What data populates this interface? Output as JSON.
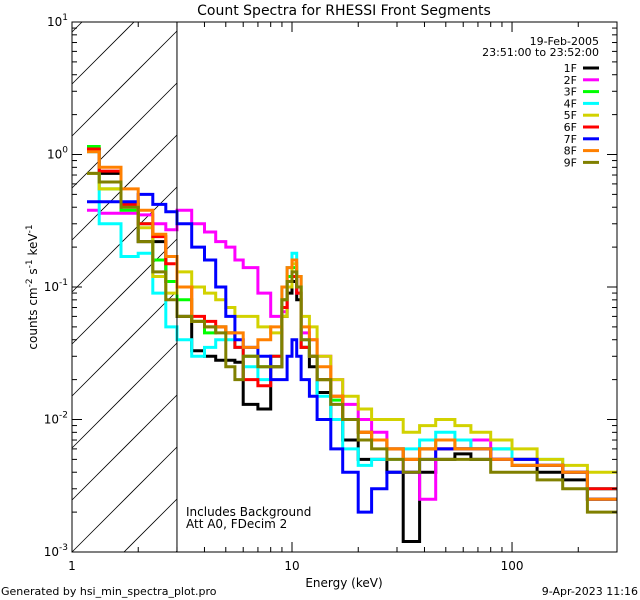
{
  "chart_data": {
    "type": "line",
    "title": "Count Spectra for RHESSI Front Segments",
    "xlabel": "Energy (keV)",
    "ylabel": {
      "base": "counts cm",
      "exp1": "-2",
      "mid1": " s",
      "exp2": "-1",
      "mid2": " keV",
      "exp3": "-1"
    },
    "xscale": "log",
    "yscale": "log",
    "xlim": [
      1,
      300
    ],
    "ylim": [
      0.001,
      10
    ],
    "x_ticks": [
      {
        "value": 1,
        "label": "1"
      },
      {
        "value": 10,
        "label": "10"
      },
      {
        "value": 100,
        "label": "100"
      }
    ],
    "y_ticks": [
      {
        "value": 0.001,
        "base": "10",
        "exp": "-3"
      },
      {
        "value": 0.01,
        "base": "10",
        "exp": "-2"
      },
      {
        "value": 0.1,
        "base": "10",
        "exp": "-1"
      },
      {
        "value": 1,
        "base": "10",
        "exp": "0"
      },
      {
        "value": 10,
        "base": "10",
        "exp": "1"
      }
    ],
    "excluded_region_keV": [
      1,
      3
    ],
    "date": "19-Feb-2005",
    "time_range": "23:51:00 to 23:52:00",
    "annotations": [
      "Includes Background",
      "Att A0, FDecim 2"
    ],
    "legend_position": "top-right",
    "energy_edges": [
      1.17,
      1.33,
      1.67,
      2.0,
      2.33,
      2.67,
      3.0,
      3.5,
      4.0,
      4.5,
      5.0,
      5.5,
      6.0,
      7.0,
      8.0,
      9.0,
      9.5,
      10,
      10.5,
      11,
      12,
      13,
      15,
      17,
      20,
      23,
      27,
      32,
      38,
      45,
      55,
      65,
      80,
      100,
      130,
      170,
      220,
      300
    ],
    "series": [
      {
        "name": "1F",
        "color": "#000000",
        "values": [
          1.1,
          0.72,
          0.42,
          0.22,
          0.22,
          0.11,
          0.06,
          0.033,
          0.03,
          0.028,
          0.028,
          0.027,
          0.013,
          0.012,
          0.025,
          0.06,
          0.09,
          0.11,
          0.08,
          0.035,
          0.025,
          0.016,
          0.01,
          0.007,
          0.005,
          0.005,
          0.004,
          0.0012,
          0.004,
          0.005,
          0.0055,
          0.005,
          0.005,
          0.0045,
          0.004,
          0.0035,
          0.0025
        ]
      },
      {
        "name": "2F",
        "color": "#ff00ff",
        "values": [
          0.38,
          0.36,
          0.36,
          0.35,
          0.3,
          0.27,
          0.38,
          0.3,
          0.26,
          0.22,
          0.2,
          0.16,
          0.14,
          0.09,
          0.06,
          0.065,
          0.1,
          0.12,
          0.09,
          0.045,
          0.04,
          0.03,
          0.02,
          0.013,
          0.01,
          0.008,
          0.006,
          0.004,
          0.0025,
          0.006,
          0.006,
          0.007,
          0.005,
          0.005,
          0.0045,
          0.004,
          0.003
        ]
      },
      {
        "name": "3F",
        "color": "#00ff00",
        "values": [
          1.15,
          0.55,
          0.38,
          0.3,
          0.16,
          0.11,
          0.08,
          0.055,
          0.045,
          0.05,
          0.045,
          0.035,
          0.03,
          0.025,
          0.03,
          0.08,
          0.12,
          0.14,
          0.1,
          0.035,
          0.03,
          0.02,
          0.014,
          0.01,
          0.008,
          0.007,
          0.006,
          0.005,
          0.006,
          0.007,
          0.006,
          0.006,
          0.006,
          0.005,
          0.0045,
          0.004,
          0.003
        ]
      },
      {
        "name": "4F",
        "color": "#00ffff",
        "values": [
          1.05,
          0.3,
          0.17,
          0.18,
          0.09,
          0.05,
          0.04,
          0.03,
          0.035,
          0.04,
          0.04,
          0.035,
          0.025,
          0.02,
          0.03,
          0.1,
          0.14,
          0.18,
          0.12,
          0.04,
          0.03,
          0.015,
          0.01,
          0.006,
          0.0045,
          0.005,
          0.005,
          0.006,
          0.007,
          0.008,
          0.007,
          0.006,
          0.006,
          0.005,
          0.005,
          0.004,
          0.003
        ]
      },
      {
        "name": "5F",
        "color": "#d2d200",
        "values": [
          0.72,
          0.55,
          0.42,
          0.28,
          0.12,
          0.09,
          0.13,
          0.1,
          0.09,
          0.08,
          0.07,
          0.06,
          0.06,
          0.05,
          0.045,
          0.06,
          0.1,
          0.15,
          0.12,
          0.06,
          0.05,
          0.03,
          0.02,
          0.015,
          0.012,
          0.01,
          0.01,
          0.008,
          0.009,
          0.01,
          0.009,
          0.008,
          0.007,
          0.006,
          0.005,
          0.0045,
          0.004
        ]
      },
      {
        "name": "6F",
        "color": "#ff0000",
        "values": [
          1.1,
          0.75,
          0.42,
          0.3,
          0.24,
          0.15,
          0.1,
          0.06,
          0.055,
          0.05,
          0.045,
          0.035,
          0.02,
          0.018,
          0.03,
          0.07,
          0.11,
          0.12,
          0.09,
          0.035,
          0.03,
          0.02,
          0.015,
          0.01,
          0.008,
          0.007,
          0.006,
          0.005,
          0.006,
          0.006,
          0.006,
          0.006,
          0.005,
          0.005,
          0.0045,
          0.004,
          0.003
        ]
      },
      {
        "name": "7F",
        "color": "#0000ff",
        "values": [
          0.44,
          0.44,
          0.44,
          0.5,
          0.42,
          0.37,
          0.3,
          0.2,
          0.16,
          0.1,
          0.06,
          0.04,
          0.035,
          0.03,
          0.02,
          0.02,
          0.03,
          0.04,
          0.03,
          0.02,
          0.015,
          0.01,
          0.006,
          0.004,
          0.002,
          0.003,
          0.004,
          0.004,
          0.005,
          0.006,
          0.006,
          0.006,
          0.005,
          0.005,
          0.0045,
          0.004,
          0.0025
        ]
      },
      {
        "name": "8F",
        "color": "#ff8000",
        "values": [
          1.05,
          0.8,
          0.55,
          0.38,
          0.25,
          0.17,
          0.1,
          0.055,
          0.05,
          0.05,
          0.045,
          0.045,
          0.035,
          0.04,
          0.05,
          0.1,
          0.14,
          0.16,
          0.12,
          0.05,
          0.04,
          0.025,
          0.015,
          0.01,
          0.008,
          0.007,
          0.006,
          0.005,
          0.006,
          0.007,
          0.006,
          0.006,
          0.005,
          0.0045,
          0.0045,
          0.004,
          0.0025
        ]
      },
      {
        "name": "9F",
        "color": "#808000",
        "values": [
          0.72,
          0.62,
          0.4,
          0.22,
          0.13,
          0.08,
          0.06,
          0.055,
          0.05,
          0.045,
          0.025,
          0.02,
          0.03,
          0.025,
          0.025,
          0.08,
          0.11,
          0.13,
          0.1,
          0.04,
          0.03,
          0.02,
          0.013,
          0.01,
          0.007,
          0.006,
          0.005,
          0.004,
          0.005,
          0.005,
          0.005,
          0.005,
          0.004,
          0.004,
          0.0035,
          0.003,
          0.002
        ]
      }
    ]
  },
  "footer": {
    "generated_by": "Generated by hsi_min_spectra_plot.pro",
    "timestamp": "9-Apr-2023 11:16"
  }
}
